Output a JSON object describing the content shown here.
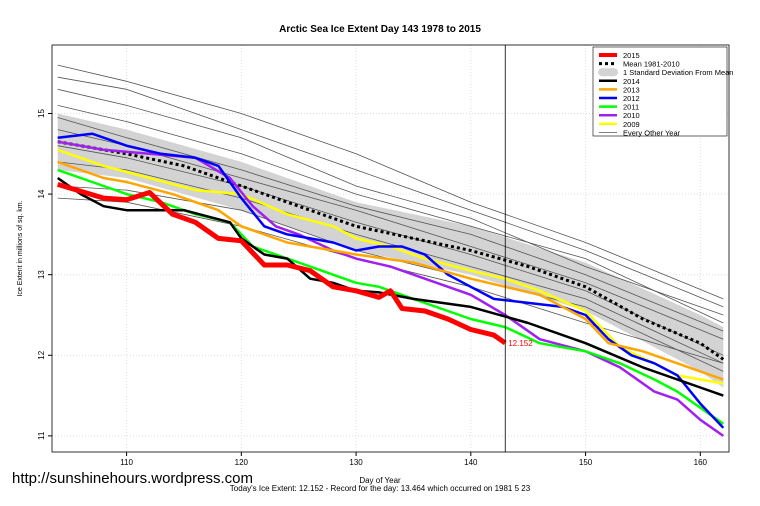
{
  "chart_data": {
    "type": "line",
    "title": "Arctic Sea Ice Extent Day 143 1978 to 2015",
    "xlabel": "Day of Year",
    "ylabel": "Ice Extent in millions of sq. km.",
    "xlim": [
      103.5,
      162.5
    ],
    "ylim": [
      10.8,
      15.85
    ],
    "xticks": [
      110,
      120,
      130,
      140,
      150,
      160
    ],
    "yticks": [
      11,
      12,
      13,
      14,
      15
    ],
    "grid": true,
    "legend_position": "top-right",
    "vline_day": 143,
    "end_label": "12.152",
    "std_band": {
      "name": "1 Standard Deviation From Mean",
      "color": "#d3d3d3",
      "upper": [
        [
          104,
          15.0
        ],
        [
          110,
          14.8
        ],
        [
          120,
          14.4
        ],
        [
          130,
          13.9
        ],
        [
          140,
          13.6
        ],
        [
          150,
          13.15
        ],
        [
          160,
          12.5
        ],
        [
          162,
          12.35
        ]
      ],
      "lower": [
        [
          104,
          14.3
        ],
        [
          110,
          14.2
        ],
        [
          120,
          13.8
        ],
        [
          130,
          13.3
        ],
        [
          140,
          13.0
        ],
        [
          150,
          12.55
        ],
        [
          160,
          11.8
        ],
        [
          162,
          11.6
        ]
      ]
    },
    "other_years": {
      "name": "Every Other Year",
      "color": "#555555",
      "series": [
        [
          [
            104,
            15.6
          ],
          [
            110,
            15.4
          ],
          [
            120,
            15.0
          ],
          [
            130,
            14.5
          ],
          [
            140,
            13.9
          ],
          [
            150,
            13.4
          ],
          [
            162,
            12.7
          ]
        ],
        [
          [
            104,
            15.45
          ],
          [
            110,
            15.3
          ],
          [
            120,
            14.8
          ],
          [
            130,
            14.3
          ],
          [
            140,
            13.8
          ],
          [
            150,
            13.3
          ],
          [
            162,
            12.6
          ]
        ],
        [
          [
            104,
            15.3
          ],
          [
            110,
            15.1
          ],
          [
            120,
            14.7
          ],
          [
            130,
            14.1
          ],
          [
            140,
            13.7
          ],
          [
            150,
            13.1
          ],
          [
            162,
            12.5
          ]
        ],
        [
          [
            104,
            15.1
          ],
          [
            110,
            14.9
          ],
          [
            120,
            14.5
          ],
          [
            130,
            14.0
          ],
          [
            140,
            13.6
          ],
          [
            150,
            13.2
          ],
          [
            162,
            12.4
          ]
        ],
        [
          [
            104,
            14.95
          ],
          [
            110,
            14.7
          ],
          [
            120,
            14.3
          ],
          [
            130,
            13.85
          ],
          [
            140,
            13.5
          ],
          [
            150,
            13.0
          ],
          [
            162,
            12.3
          ]
        ],
        [
          [
            104,
            14.8
          ],
          [
            110,
            14.6
          ],
          [
            120,
            14.2
          ],
          [
            130,
            13.8
          ],
          [
            140,
            13.35
          ],
          [
            150,
            12.9
          ],
          [
            162,
            12.2
          ]
        ],
        [
          [
            104,
            14.6
          ],
          [
            110,
            14.45
          ],
          [
            120,
            14.1
          ],
          [
            130,
            13.65
          ],
          [
            140,
            13.25
          ],
          [
            150,
            12.8
          ],
          [
            162,
            12.0
          ]
        ],
        [
          [
            104,
            14.4
          ],
          [
            110,
            14.3
          ],
          [
            120,
            13.95
          ],
          [
            130,
            13.5
          ],
          [
            140,
            13.1
          ],
          [
            150,
            12.7
          ],
          [
            162,
            11.9
          ]
        ],
        [
          [
            104,
            14.1
          ],
          [
            110,
            14.05
          ],
          [
            120,
            13.8
          ],
          [
            130,
            13.3
          ],
          [
            140,
            12.95
          ],
          [
            150,
            12.6
          ],
          [
            162,
            11.8
          ]
        ],
        [
          [
            104,
            13.95
          ],
          [
            110,
            13.9
          ],
          [
            120,
            13.6
          ],
          [
            130,
            13.2
          ],
          [
            140,
            12.85
          ],
          [
            150,
            12.4
          ],
          [
            162,
            11.9
          ]
        ]
      ]
    },
    "series": [
      {
        "name": "Mean 1981-2010",
        "color": "#000000",
        "dashed": true,
        "width": 3,
        "points": [
          [
            104,
            14.65
          ],
          [
            110,
            14.5
          ],
          [
            115,
            14.35
          ],
          [
            120,
            14.1
          ],
          [
            125,
            13.85
          ],
          [
            130,
            13.6
          ],
          [
            135,
            13.45
          ],
          [
            140,
            13.3
          ],
          [
            145,
            13.1
          ],
          [
            150,
            12.85
          ],
          [
            155,
            12.45
          ],
          [
            160,
            12.15
          ],
          [
            162,
            11.95
          ]
        ]
      },
      {
        "name": "2009",
        "color": "#ffff00",
        "width": 2.5,
        "points": [
          [
            104,
            14.55
          ],
          [
            108,
            14.35
          ],
          [
            112,
            14.2
          ],
          [
            116,
            14.05
          ],
          [
            120,
            14.0
          ],
          [
            124,
            13.75
          ],
          [
            128,
            13.6
          ],
          [
            130,
            13.45
          ],
          [
            133,
            13.35
          ],
          [
            136,
            13.2
          ],
          [
            140,
            13.05
          ],
          [
            143,
            12.95
          ],
          [
            146,
            12.8
          ],
          [
            150,
            12.55
          ],
          [
            153,
            12.1
          ],
          [
            156,
            11.9
          ],
          [
            158,
            11.75
          ],
          [
            160,
            11.7
          ],
          [
            162,
            11.65
          ]
        ]
      },
      {
        "name": "2010",
        "color": "#a020f0",
        "width": 2.5,
        "points": [
          [
            104,
            14.65
          ],
          [
            108,
            14.55
          ],
          [
            112,
            14.5
          ],
          [
            116,
            14.45
          ],
          [
            119,
            14.2
          ],
          [
            121,
            13.85
          ],
          [
            123,
            13.6
          ],
          [
            125,
            13.5
          ],
          [
            128,
            13.3
          ],
          [
            130,
            13.2
          ],
          [
            133,
            13.1
          ],
          [
            136,
            12.95
          ],
          [
            140,
            12.75
          ],
          [
            143,
            12.5
          ],
          [
            146,
            12.2
          ],
          [
            150,
            12.05
          ],
          [
            153,
            11.85
          ],
          [
            156,
            11.55
          ],
          [
            158,
            11.45
          ],
          [
            160,
            11.2
          ],
          [
            162,
            11.0
          ]
        ]
      },
      {
        "name": "2011",
        "color": "#00ff00",
        "width": 2.5,
        "points": [
          [
            104,
            14.3
          ],
          [
            108,
            14.1
          ],
          [
            110,
            14.0
          ],
          [
            113,
            13.9
          ],
          [
            116,
            13.75
          ],
          [
            119,
            13.65
          ],
          [
            121,
            13.35
          ],
          [
            123,
            13.25
          ],
          [
            126,
            13.1
          ],
          [
            128,
            13.0
          ],
          [
            130,
            12.9
          ],
          [
            132,
            12.85
          ],
          [
            135,
            12.7
          ],
          [
            138,
            12.55
          ],
          [
            140,
            12.45
          ],
          [
            143,
            12.35
          ],
          [
            146,
            12.15
          ],
          [
            150,
            12.05
          ],
          [
            153,
            11.9
          ],
          [
            156,
            11.7
          ],
          [
            158,
            11.55
          ],
          [
            160,
            11.35
          ],
          [
            162,
            11.15
          ]
        ]
      },
      {
        "name": "2012",
        "color": "#0000ff",
        "width": 2.5,
        "points": [
          [
            104,
            14.7
          ],
          [
            107,
            14.75
          ],
          [
            110,
            14.6
          ],
          [
            113,
            14.5
          ],
          [
            116,
            14.45
          ],
          [
            118,
            14.35
          ],
          [
            120,
            13.95
          ],
          [
            122,
            13.6
          ],
          [
            124,
            13.5
          ],
          [
            126,
            13.45
          ],
          [
            128,
            13.4
          ],
          [
            130,
            13.3
          ],
          [
            132,
            13.35
          ],
          [
            134,
            13.35
          ],
          [
            136,
            13.25
          ],
          [
            138,
            13.0
          ],
          [
            140,
            12.85
          ],
          [
            142,
            12.7
          ],
          [
            145,
            12.65
          ],
          [
            148,
            12.6
          ],
          [
            150,
            12.5
          ],
          [
            152,
            12.2
          ],
          [
            154,
            12.0
          ],
          [
            156,
            11.9
          ],
          [
            158,
            11.75
          ],
          [
            160,
            11.4
          ],
          [
            162,
            11.1
          ]
        ]
      },
      {
        "name": "2013",
        "color": "#ffa500",
        "width": 2.5,
        "points": [
          [
            104,
            14.4
          ],
          [
            108,
            14.2
          ],
          [
            110,
            14.15
          ],
          [
            114,
            14.0
          ],
          [
            118,
            13.8
          ],
          [
            120,
            13.6
          ],
          [
            124,
            13.4
          ],
          [
            128,
            13.3
          ],
          [
            130,
            13.25
          ],
          [
            135,
            13.15
          ],
          [
            140,
            12.95
          ],
          [
            143,
            12.85
          ],
          [
            146,
            12.75
          ],
          [
            150,
            12.45
          ],
          [
            152,
            12.15
          ],
          [
            155,
            12.05
          ],
          [
            158,
            11.9
          ],
          [
            160,
            11.8
          ],
          [
            162,
            11.7
          ]
        ]
      },
      {
        "name": "2014",
        "color": "#000000",
        "width": 2.5,
        "points": [
          [
            104,
            14.2
          ],
          [
            106,
            14.0
          ],
          [
            108,
            13.85
          ],
          [
            110,
            13.8
          ],
          [
            115,
            13.8
          ],
          [
            119,
            13.65
          ],
          [
            120,
            13.45
          ],
          [
            122,
            13.25
          ],
          [
            124,
            13.2
          ],
          [
            126,
            12.95
          ],
          [
            128,
            12.9
          ],
          [
            130,
            12.8
          ],
          [
            132,
            12.78
          ],
          [
            135,
            12.7
          ],
          [
            140,
            12.6
          ],
          [
            145,
            12.4
          ],
          [
            150,
            12.15
          ],
          [
            155,
            11.85
          ],
          [
            158,
            11.7
          ],
          [
            160,
            11.6
          ],
          [
            162,
            11.5
          ]
        ]
      },
      {
        "name": "2015",
        "color": "#ff0000",
        "width": 5,
        "points": [
          [
            104,
            14.12
          ],
          [
            108,
            13.95
          ],
          [
            110,
            13.93
          ],
          [
            112,
            14.02
          ],
          [
            114,
            13.75
          ],
          [
            116,
            13.65
          ],
          [
            118,
            13.45
          ],
          [
            120,
            13.42
          ],
          [
            122,
            13.12
          ],
          [
            124,
            13.12
          ],
          [
            126,
            13.05
          ],
          [
            128,
            12.85
          ],
          [
            130,
            12.8
          ],
          [
            132,
            12.72
          ],
          [
            133,
            12.8
          ],
          [
            134,
            12.58
          ],
          [
            136,
            12.55
          ],
          [
            138,
            12.45
          ],
          [
            140,
            12.32
          ],
          [
            142,
            12.25
          ],
          [
            143,
            12.152
          ]
        ]
      }
    ],
    "legend": [
      "2015",
      "Mean 1981-2010",
      "1 Standard Deviation From Mean",
      "2014",
      "2013",
      "2012",
      "2011",
      "2010",
      "2009",
      "Every Other Year"
    ]
  },
  "footer": {
    "url": "http://sunshinehours.wordpress.com",
    "summary": "Today's Ice Extent: 12.152  - Record for the day: 13.464 which occurred on 1981 5 23"
  }
}
